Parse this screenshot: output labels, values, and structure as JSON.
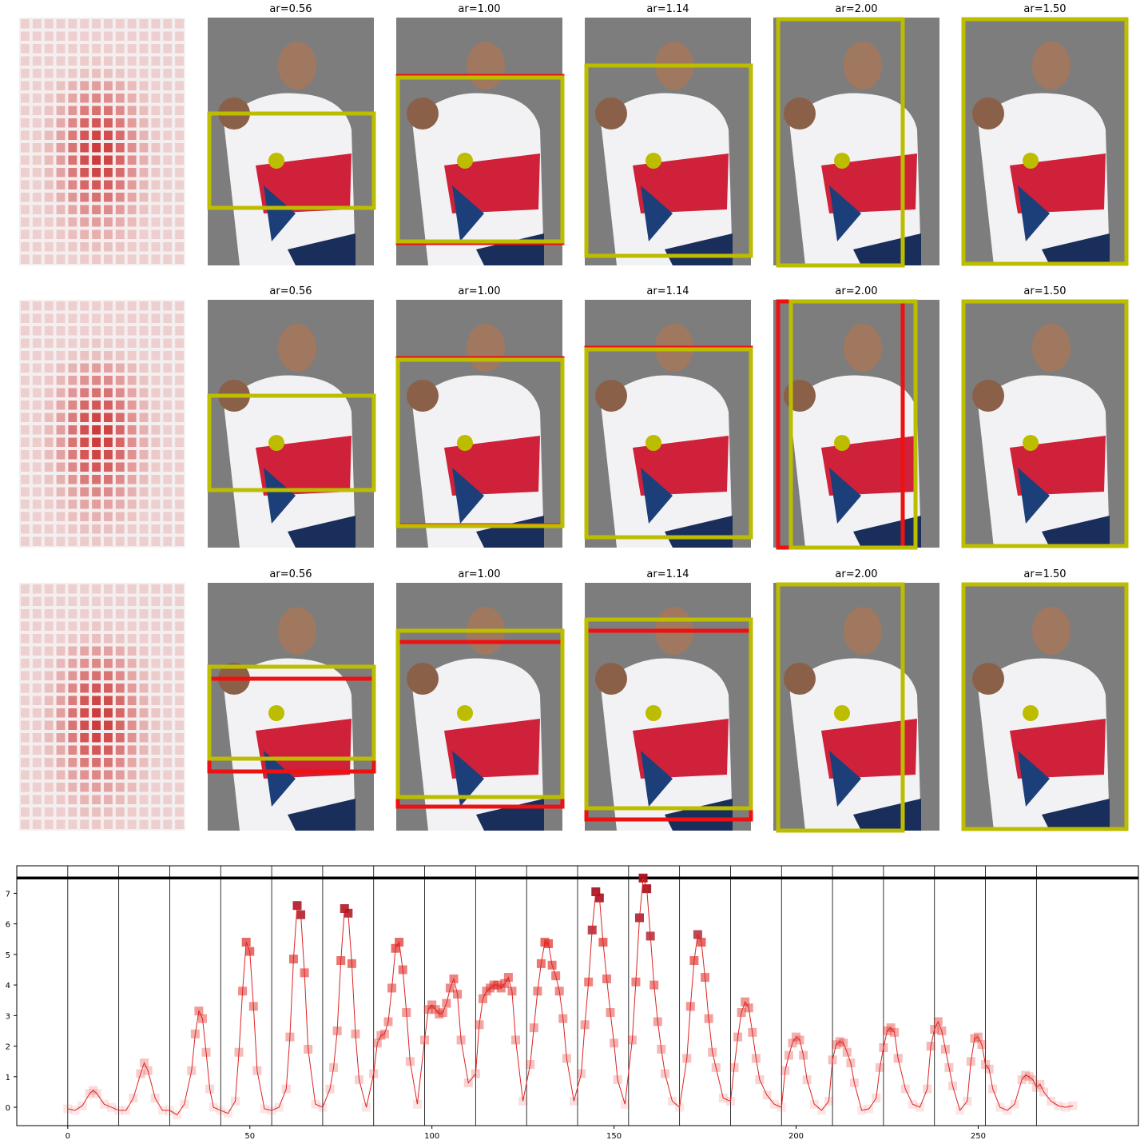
{
  "figure": {
    "rows": 3,
    "panels_per_row": 5,
    "colors": {
      "box_yellow": "#bdbd00",
      "box_red": "#ee1111",
      "dot_yellow": "#bdbd00",
      "heat": "#cc3333",
      "line": "#dd2222"
    },
    "titles": [
      "ar=0.56",
      "ar=1.00",
      "ar=1.14",
      "ar=2.00",
      "ar=1.50"
    ]
  },
  "chart_data": {
    "type": "line",
    "title": "",
    "xlabel": "",
    "ylabel": "",
    "xlim": [
      -14,
      294
    ],
    "ylim": [
      -0.6,
      7.9
    ],
    "x_ticks": [
      0,
      50,
      100,
      150,
      200,
      250
    ],
    "y_ticks": [
      0,
      1,
      2,
      3,
      4,
      5,
      6,
      7
    ],
    "hline": 7.5,
    "vlines": [
      0,
      14,
      28,
      42,
      56,
      70,
      84,
      98,
      112,
      126,
      140,
      154,
      168,
      182,
      196,
      210,
      224,
      238,
      252,
      266
    ],
    "series": [
      {
        "values": [
          [
            0,
            -0.05
          ],
          [
            2,
            -0.1
          ],
          [
            4,
            0.05
          ],
          [
            6,
            0.45
          ],
          [
            7,
            0.55
          ],
          [
            8,
            0.45
          ],
          [
            10,
            0.1
          ],
          [
            12,
            0.0
          ],
          [
            14,
            -0.1
          ],
          [
            16,
            -0.1
          ],
          [
            18,
            0.3
          ],
          [
            20,
            1.1
          ],
          [
            21,
            1.45
          ],
          [
            22,
            1.2
          ],
          [
            24,
            0.3
          ],
          [
            26,
            -0.1
          ],
          [
            28,
            -0.1
          ],
          [
            30,
            -0.25
          ],
          [
            32,
            0.1
          ],
          [
            34,
            1.2
          ],
          [
            35,
            2.4
          ],
          [
            36,
            3.15
          ],
          [
            37,
            2.9
          ],
          [
            38,
            1.8
          ],
          [
            39,
            0.6
          ],
          [
            40,
            0.0
          ],
          [
            42,
            -0.1
          ],
          [
            44,
            -0.2
          ],
          [
            46,
            0.2
          ],
          [
            47,
            1.8
          ],
          [
            48,
            3.8
          ],
          [
            49,
            5.4
          ],
          [
            50,
            5.1
          ],
          [
            51,
            3.3
          ],
          [
            52,
            1.2
          ],
          [
            54,
            -0.05
          ],
          [
            56,
            -0.1
          ],
          [
            58,
            0.0
          ],
          [
            60,
            0.6
          ],
          [
            61,
            2.3
          ],
          [
            62,
            4.85
          ],
          [
            63,
            6.6
          ],
          [
            64,
            6.3
          ],
          [
            65,
            4.4
          ],
          [
            66,
            1.9
          ],
          [
            68,
            0.1
          ],
          [
            70,
            0.0
          ],
          [
            72,
            0.6
          ],
          [
            73,
            1.3
          ],
          [
            74,
            2.5
          ],
          [
            75,
            4.8
          ],
          [
            76,
            6.5
          ],
          [
            77,
            6.35
          ],
          [
            78,
            4.7
          ],
          [
            79,
            2.4
          ],
          [
            80,
            0.9
          ],
          [
            82,
            0.0
          ],
          [
            84,
            1.1
          ],
          [
            85,
            2.1
          ],
          [
            86,
            2.35
          ],
          [
            87,
            2.4
          ],
          [
            88,
            2.8
          ],
          [
            89,
            3.9
          ],
          [
            90,
            5.2
          ],
          [
            91,
            5.4
          ],
          [
            92,
            4.5
          ],
          [
            93,
            3.1
          ],
          [
            94,
            1.5
          ],
          [
            96,
            0.1
          ],
          [
            98,
            2.2
          ],
          [
            99,
            3.2
          ],
          [
            100,
            3.35
          ],
          [
            101,
            3.2
          ],
          [
            102,
            3.05
          ],
          [
            103,
            3.1
          ],
          [
            104,
            3.4
          ],
          [
            105,
            3.9
          ],
          [
            106,
            4.2
          ],
          [
            107,
            3.7
          ],
          [
            108,
            2.2
          ],
          [
            110,
            0.8
          ],
          [
            112,
            1.1
          ],
          [
            113,
            2.7
          ],
          [
            114,
            3.55
          ],
          [
            115,
            3.8
          ],
          [
            116,
            3.9
          ],
          [
            117,
            4.0
          ],
          [
            118,
            4.0
          ],
          [
            119,
            3.9
          ],
          [
            120,
            4.05
          ],
          [
            121,
            4.25
          ],
          [
            122,
            3.8
          ],
          [
            123,
            2.2
          ],
          [
            125,
            0.2
          ],
          [
            127,
            1.4
          ],
          [
            128,
            2.6
          ],
          [
            129,
            3.8
          ],
          [
            130,
            4.7
          ],
          [
            131,
            5.4
          ],
          [
            132,
            5.35
          ],
          [
            133,
            4.65
          ],
          [
            134,
            4.3
          ],
          [
            135,
            3.8
          ],
          [
            136,
            2.9
          ],
          [
            137,
            1.6
          ],
          [
            139,
            0.2
          ],
          [
            141,
            1.1
          ],
          [
            142,
            2.7
          ],
          [
            143,
            4.1
          ],
          [
            144,
            5.8
          ],
          [
            145,
            7.05
          ],
          [
            146,
            6.85
          ],
          [
            147,
            5.4
          ],
          [
            148,
            4.2
          ],
          [
            149,
            3.1
          ],
          [
            150,
            2.1
          ],
          [
            151,
            0.9
          ],
          [
            153,
            0.1
          ],
          [
            155,
            2.2
          ],
          [
            156,
            4.1
          ],
          [
            157,
            6.2
          ],
          [
            158,
            7.5
          ],
          [
            159,
            7.15
          ],
          [
            160,
            5.6
          ],
          [
            161,
            4.0
          ],
          [
            162,
            2.8
          ],
          [
            163,
            1.9
          ],
          [
            164,
            1.1
          ],
          [
            166,
            0.2
          ],
          [
            168,
            0.0
          ],
          [
            170,
            1.6
          ],
          [
            171,
            3.3
          ],
          [
            172,
            4.8
          ],
          [
            173,
            5.65
          ],
          [
            174,
            5.4
          ],
          [
            175,
            4.25
          ],
          [
            176,
            2.9
          ],
          [
            177,
            1.8
          ],
          [
            178,
            1.3
          ],
          [
            180,
            0.3
          ],
          [
            182,
            0.2
          ],
          [
            183,
            1.3
          ],
          [
            184,
            2.3
          ],
          [
            185,
            3.1
          ],
          [
            186,
            3.45
          ],
          [
            187,
            3.25
          ],
          [
            188,
            2.45
          ],
          [
            189,
            1.6
          ],
          [
            190,
            0.9
          ],
          [
            192,
            0.4
          ],
          [
            194,
            0.1
          ],
          [
            196,
            0.0
          ],
          [
            197,
            1.2
          ],
          [
            198,
            1.7
          ],
          [
            199,
            2.1
          ],
          [
            200,
            2.3
          ],
          [
            201,
            2.2
          ],
          [
            202,
            1.7
          ],
          [
            203,
            0.9
          ],
          [
            205,
            0.1
          ],
          [
            207,
            -0.1
          ],
          [
            209,
            0.2
          ],
          [
            210,
            1.55
          ],
          [
            211,
            2.05
          ],
          [
            212,
            2.15
          ],
          [
            213,
            2.1
          ],
          [
            214,
            1.8
          ],
          [
            215,
            1.45
          ],
          [
            216,
            0.8
          ],
          [
            218,
            -0.1
          ],
          [
            220,
            -0.05
          ],
          [
            222,
            0.3
          ],
          [
            223,
            1.3
          ],
          [
            224,
            1.95
          ],
          [
            225,
            2.5
          ],
          [
            226,
            2.6
          ],
          [
            227,
            2.45
          ],
          [
            228,
            1.6
          ],
          [
            230,
            0.6
          ],
          [
            232,
            0.1
          ],
          [
            234,
            0.0
          ],
          [
            236,
            0.6
          ],
          [
            237,
            2.0
          ],
          [
            238,
            2.55
          ],
          [
            239,
            2.8
          ],
          [
            240,
            2.5
          ],
          [
            241,
            1.9
          ],
          [
            242,
            1.3
          ],
          [
            243,
            0.7
          ],
          [
            245,
            -0.1
          ],
          [
            247,
            0.2
          ],
          [
            248,
            1.5
          ],
          [
            249,
            2.25
          ],
          [
            250,
            2.3
          ],
          [
            251,
            2.05
          ],
          [
            252,
            1.4
          ],
          [
            253,
            1.25
          ],
          [
            254,
            0.6
          ],
          [
            256,
            0.0
          ],
          [
            258,
            -0.1
          ],
          [
            260,
            0.1
          ],
          [
            262,
            0.9
          ],
          [
            263,
            1.05
          ],
          [
            264,
            1.0
          ],
          [
            265,
            0.9
          ],
          [
            266,
            0.65
          ],
          [
            267,
            0.75
          ],
          [
            268,
            0.5
          ],
          [
            270,
            0.2
          ],
          [
            272,
            0.05
          ],
          [
            274,
            0.0
          ],
          [
            276,
            0.05
          ]
        ]
      }
    ]
  }
}
